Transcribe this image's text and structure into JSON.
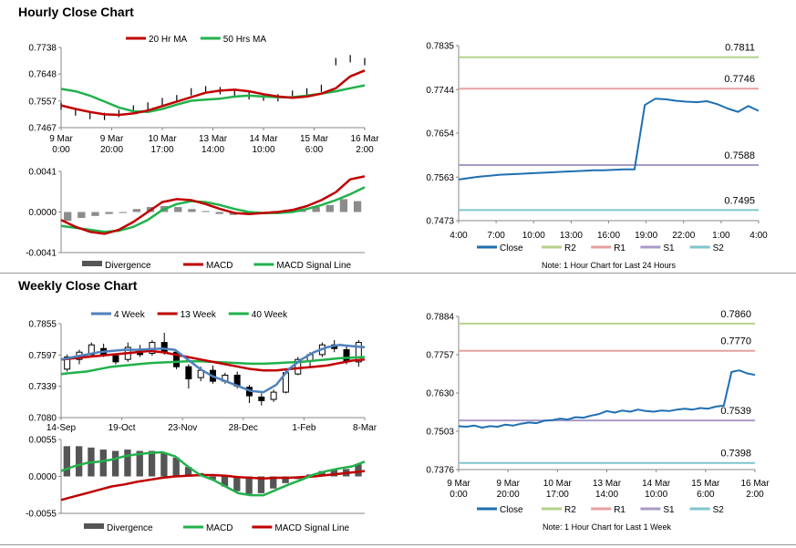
{
  "hourly": {
    "title": "Hourly Close Chart",
    "price": {
      "legend": [
        {
          "label": "20 Hr MA",
          "color": "#c00000"
        },
        {
          "label": "50 Hrs MA",
          "color": "#22b14c"
        }
      ],
      "yticks": [
        "0.7738",
        "0.7648",
        "0.7557",
        "0.7467"
      ],
      "ylim": [
        0.7467,
        0.7738
      ],
      "xticks": [
        [
          "9 Mar",
          "0:00"
        ],
        [
          "9 Mar",
          "20:00"
        ],
        [
          "10 Mar",
          "17:00"
        ],
        [
          "13 Mar",
          "14:00"
        ],
        [
          "14 Mar",
          "10:00"
        ],
        [
          "15 Mar",
          "6:00"
        ],
        [
          "16 Mar",
          "2:00"
        ]
      ],
      "ma20": [
        0.7542,
        0.753,
        0.752,
        0.7512,
        0.751,
        0.7515,
        0.7525,
        0.754,
        0.7555,
        0.757,
        0.7585,
        0.7592,
        0.7595,
        0.759,
        0.758,
        0.7572,
        0.7568,
        0.7572,
        0.7582,
        0.76,
        0.764,
        0.766
      ],
      "ma50": [
        0.7598,
        0.759,
        0.7575,
        0.7555,
        0.7535,
        0.7522,
        0.752,
        0.753,
        0.7545,
        0.7558,
        0.7562,
        0.7565,
        0.7572,
        0.7575,
        0.7572,
        0.757,
        0.757,
        0.7575,
        0.7582,
        0.759,
        0.76,
        0.761
      ],
      "close": [
        0.754,
        0.752,
        0.7508,
        0.7505,
        0.7515,
        0.753,
        0.754,
        0.7555,
        0.7565,
        0.7588,
        0.7595,
        0.7592,
        0.758,
        0.7575,
        0.757,
        0.7568,
        0.758,
        0.7588,
        0.76,
        0.769,
        0.77,
        0.769
      ]
    },
    "macd": {
      "yticks": [
        "0.0041",
        "0.0000",
        "-0.0041"
      ],
      "ylim": [
        -0.0041,
        0.0041
      ],
      "legend": [
        {
          "label": "Divergence",
          "color": "#555555",
          "kind": "bar"
        },
        {
          "label": "MACD",
          "color": "#c00000"
        },
        {
          "label": "MACD Signal Line",
          "color": "#22b14c"
        }
      ],
      "macd": [
        -0.0008,
        -0.0015,
        -0.002,
        -0.0022,
        -0.0018,
        -0.001,
        0.0,
        0.001,
        0.0013,
        0.0012,
        0.0008,
        0.0003,
        -0.0001,
        -0.0002,
        -0.0001,
        0.0,
        0.0002,
        0.0006,
        0.0012,
        0.002,
        0.0033,
        0.0036
      ],
      "signal": [
        -0.0014,
        -0.0016,
        -0.0018,
        -0.002,
        -0.0019,
        -0.0015,
        -0.0008,
        0.0002,
        0.0008,
        0.0011,
        0.001,
        0.0007,
        0.0003,
        0.0,
        -0.0001,
        -0.0001,
        0.0,
        0.0003,
        0.0007,
        0.0012,
        0.0018,
        0.0025
      ],
      "divergence": [
        -0.0009,
        -0.0006,
        -0.0004,
        -0.0002,
        -0.0001,
        0.0003,
        0.0005,
        0.0006,
        0.0005,
        0.0003,
        0.0001,
        -0.0002,
        -0.0003,
        -0.0002,
        -0.0001,
        0.0001,
        0.0002,
        0.0003,
        0.0005,
        0.0007,
        0.0013,
        0.0011
      ]
    },
    "levels": {
      "yticks": [
        "0.7835",
        "0.7744",
        "0.7654",
        "0.7563",
        "0.7473"
      ],
      "ylim": [
        0.7473,
        0.7835
      ],
      "xticks": [
        "4:00",
        "7:00",
        "10:00",
        "13:00",
        "16:00",
        "19:00",
        "22:00",
        "1:00",
        "4:00"
      ],
      "close": [
        0.7558,
        0.7561,
        0.7564,
        0.7566,
        0.7568,
        0.7569,
        0.757,
        0.7571,
        0.7572,
        0.7573,
        0.7574,
        0.7575,
        0.7576,
        0.7577,
        0.7577,
        0.7578,
        0.7579,
        0.7579,
        0.7712,
        0.7725,
        0.7724,
        0.7721,
        0.7719,
        0.7718,
        0.772,
        0.7714,
        0.7705,
        0.7698,
        0.771,
        0.77
      ],
      "R2": 0.7811,
      "R1": 0.7746,
      "S1": 0.7588,
      "S2": 0.7495,
      "labels": [
        "0.7811",
        "0.7746",
        "0.7588",
        "0.7495"
      ],
      "legend": [
        {
          "label": "Close",
          "color": "#1f6fb2"
        },
        {
          "label": "R2",
          "color": "#b5d28a"
        },
        {
          "label": "R1",
          "color": "#e6a0a0"
        },
        {
          "label": "S1",
          "color": "#a89ac8"
        },
        {
          "label": "S2",
          "color": "#7fc6cc"
        }
      ],
      "note": "Note: 1 Hour Chart for Last 24 Hours"
    }
  },
  "weekly": {
    "title": "Weekly Close Chart",
    "price": {
      "legend": [
        {
          "label": "4 Week",
          "color": "#4f81bd"
        },
        {
          "label": "13 Week",
          "color": "#c00000"
        },
        {
          "label": "40 Week",
          "color": "#22b14c"
        }
      ],
      "yticks": [
        "0.7855",
        "0.7597",
        "0.7339",
        "0.7080"
      ],
      "ylim": [
        0.708,
        0.7855
      ],
      "xticks": [
        "14-Sep",
        "19-Oct",
        "23-Nov",
        "28-Dec",
        "1-Feb",
        "8-Mar"
      ],
      "ma4": [
        0.756,
        0.758,
        0.76,
        0.762,
        0.763,
        0.764,
        0.764,
        0.7645,
        0.765,
        0.764,
        0.756,
        0.748,
        0.742,
        0.738,
        0.734,
        0.73,
        0.729,
        0.735,
        0.748,
        0.756,
        0.762,
        0.766,
        0.768,
        0.767,
        0.766
      ],
      "ma13": [
        0.756,
        0.757,
        0.758,
        0.759,
        0.76,
        0.761,
        0.762,
        0.763,
        0.762,
        0.76,
        0.758,
        0.756,
        0.754,
        0.752,
        0.75,
        0.748,
        0.747,
        0.747,
        0.748,
        0.749,
        0.75,
        0.751,
        0.753,
        0.755,
        0.756
      ],
      "ma40": [
        0.744,
        0.745,
        0.746,
        0.748,
        0.75,
        0.751,
        0.752,
        0.753,
        0.7535,
        0.754,
        0.7545,
        0.7545,
        0.754,
        0.7535,
        0.753,
        0.7525,
        0.7525,
        0.753,
        0.7535,
        0.754,
        0.755,
        0.756,
        0.757,
        0.7575,
        0.758
      ],
      "candles": [
        [
          0.748,
          0.758,
          0.746,
          0.76
        ],
        [
          0.756,
          0.762,
          0.752,
          0.764
        ],
        [
          0.76,
          0.768,
          0.758,
          0.77
        ],
        [
          0.765,
          0.76,
          0.758,
          0.769
        ],
        [
          0.759,
          0.754,
          0.752,
          0.761
        ],
        [
          0.756,
          0.766,
          0.754,
          0.77
        ],
        [
          0.764,
          0.76,
          0.758,
          0.768
        ],
        [
          0.761,
          0.77,
          0.759,
          0.772
        ],
        [
          0.77,
          0.762,
          0.76,
          0.778
        ],
        [
          0.762,
          0.75,
          0.748,
          0.764
        ],
        [
          0.75,
          0.74,
          0.732,
          0.752
        ],
        [
          0.741,
          0.747,
          0.738,
          0.75
        ],
        [
          0.747,
          0.738,
          0.736,
          0.751
        ],
        [
          0.738,
          0.743,
          0.736,
          0.745
        ],
        [
          0.743,
          0.734,
          0.732,
          0.746
        ],
        [
          0.733,
          0.726,
          0.72,
          0.735
        ],
        [
          0.725,
          0.722,
          0.718,
          0.728
        ],
        [
          0.723,
          0.729,
          0.721,
          0.731
        ],
        [
          0.729,
          0.745,
          0.728,
          0.747
        ],
        [
          0.744,
          0.756,
          0.743,
          0.758
        ],
        [
          0.755,
          0.76,
          0.75,
          0.762
        ],
        [
          0.76,
          0.768,
          0.758,
          0.77
        ],
        [
          0.768,
          0.765,
          0.762,
          0.772
        ],
        [
          0.764,
          0.754,
          0.752,
          0.768
        ],
        [
          0.754,
          0.77,
          0.75,
          0.772
        ]
      ]
    },
    "macd": {
      "yticks": [
        "0.0055",
        "0.0000",
        "-0.0055"
      ],
      "ylim": [
        -0.0055,
        0.0055
      ],
      "legend": [
        {
          "label": "Divergence",
          "color": "#555555",
          "kind": "bar"
        },
        {
          "label": "MACD",
          "color": "#22b14c"
        },
        {
          "label": "MACD Signal Line",
          "color": "#c00000"
        }
      ],
      "macd": [
        0.0008,
        0.0015,
        0.002,
        0.0022,
        0.0025,
        0.003,
        0.0033,
        0.0035,
        0.0036,
        0.003,
        0.0015,
        0.0002,
        -0.0005,
        -0.0015,
        -0.0025,
        -0.0028,
        -0.0028,
        -0.002,
        -0.0012,
        -0.0005,
        0.0003,
        0.0008,
        0.0012,
        0.0015,
        0.0022
      ],
      "signal": [
        -0.0035,
        -0.003,
        -0.0025,
        -0.002,
        -0.0015,
        -0.0012,
        -0.0008,
        -0.0005,
        -0.0002,
        0.0,
        0.0001,
        0.0002,
        0.0002,
        0.0001,
        -0.0001,
        -0.0002,
        -0.0003,
        -0.0002,
        -0.0002,
        -0.0001,
        0.0,
        0.0002,
        0.0004,
        0.0006,
        0.0008
      ],
      "divergence": [
        0.0045,
        0.0045,
        0.0043,
        0.004,
        0.0038,
        0.004,
        0.0038,
        0.0038,
        0.0035,
        0.0028,
        0.0014,
        0.0005,
        -0.0005,
        -0.0015,
        -0.0022,
        -0.0026,
        -0.0025,
        -0.0018,
        -0.001,
        -0.0004,
        0.0003,
        0.0008,
        0.001,
        0.0011,
        0.0018
      ]
    },
    "levels": {
      "yticks": [
        "0.7884",
        "0.7757",
        "0.7630",
        "0.7503",
        "0.7376"
      ],
      "ylim": [
        0.7376,
        0.7884
      ],
      "xticks": [
        [
          "9 Mar",
          "0:00"
        ],
        [
          "9 Mar",
          "20:00"
        ],
        [
          "10 Mar",
          "17:00"
        ],
        [
          "13 Mar",
          "14:00"
        ],
        [
          "14 Mar",
          "10:00"
        ],
        [
          "15 Mar",
          "6:00"
        ],
        [
          "16 Mar",
          "2:00"
        ]
      ],
      "close": [
        0.752,
        0.7518,
        0.7522,
        0.7515,
        0.752,
        0.7518,
        0.7525,
        0.7522,
        0.7528,
        0.7532,
        0.753,
        0.7538,
        0.754,
        0.7545,
        0.7542,
        0.755,
        0.7548,
        0.7555,
        0.756,
        0.757,
        0.7565,
        0.7572,
        0.7568,
        0.7575,
        0.757,
        0.7568,
        0.7572,
        0.757,
        0.7575,
        0.7578,
        0.7575,
        0.758,
        0.7578,
        0.7585,
        0.7588,
        0.77,
        0.7705,
        0.7695,
        0.769
      ],
      "R2": 0.786,
      "R1": 0.777,
      "S1": 0.7539,
      "S2": 0.7398,
      "labels": [
        "0.7860",
        "0.7770",
        "0.7539",
        "0.7398"
      ],
      "legend": [
        {
          "label": "Close",
          "color": "#1f6fb2"
        },
        {
          "label": "R2",
          "color": "#b5d28a"
        },
        {
          "label": "R1",
          "color": "#e6a0a0"
        },
        {
          "label": "S1",
          "color": "#a89ac8"
        },
        {
          "label": "S2",
          "color": "#7fc6cc"
        }
      ],
      "note": "Note: 1 Hour Chart for Last 1 Week"
    }
  }
}
